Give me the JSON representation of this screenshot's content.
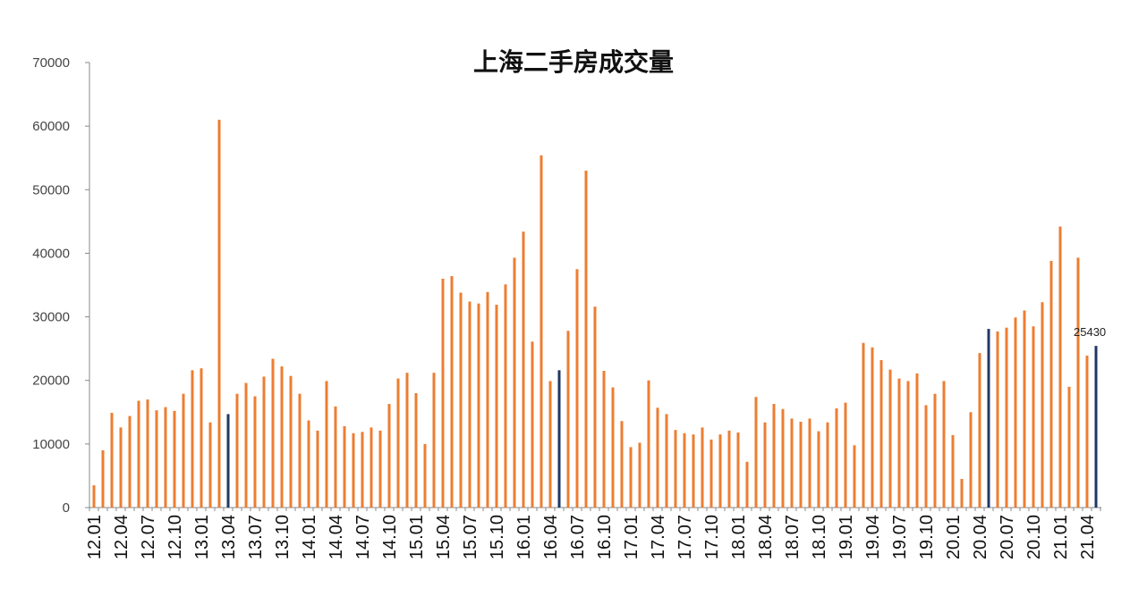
{
  "chart_data": {
    "type": "bar",
    "title": "上海二手房成交量",
    "xlabel": "",
    "ylabel": "",
    "ylim": [
      0,
      70000
    ],
    "yticks": [
      0,
      10000,
      20000,
      30000,
      40000,
      50000,
      60000,
      70000
    ],
    "colors": {
      "default": "#ED7D31",
      "highlight": "#203864"
    },
    "categories": [
      "12.01",
      "12.02",
      "12.03",
      "12.04",
      "12.05",
      "12.06",
      "12.07",
      "12.08",
      "12.09",
      "12.10",
      "12.11",
      "12.12",
      "13.01",
      "13.02",
      "13.03",
      "13.04",
      "13.05",
      "13.06",
      "13.07",
      "13.08",
      "13.09",
      "13.10",
      "13.11",
      "13.12",
      "14.01",
      "14.02",
      "14.03",
      "14.04",
      "14.05",
      "14.06",
      "14.07",
      "14.08",
      "14.09",
      "14.10",
      "14.11",
      "14.12",
      "15.01",
      "15.02",
      "15.03",
      "15.04",
      "15.05",
      "15.06",
      "15.07",
      "15.08",
      "15.09",
      "15.10",
      "15.11",
      "15.12",
      "16.01",
      "16.02",
      "16.03",
      "16.04",
      "16.05",
      "16.06",
      "16.07",
      "16.08",
      "16.09",
      "16.10",
      "16.11",
      "16.12",
      "17.01",
      "17.02",
      "17.03",
      "17.04",
      "17.05",
      "17.06",
      "17.07",
      "17.08",
      "17.09",
      "17.10",
      "17.11",
      "17.12",
      "18.01",
      "18.02",
      "18.03",
      "18.04",
      "18.05",
      "18.06",
      "18.07",
      "18.08",
      "18.09",
      "18.10",
      "18.11",
      "18.12",
      "19.01",
      "19.02",
      "19.03",
      "19.04",
      "19.05",
      "19.06",
      "19.07",
      "19.08",
      "19.09",
      "19.10",
      "19.11",
      "19.12",
      "20.01",
      "20.02",
      "20.03",
      "20.04",
      "20.05",
      "20.06",
      "20.07",
      "20.08",
      "20.09",
      "20.10",
      "20.11",
      "20.12",
      "21.01",
      "21.02",
      "21.03",
      "21.04",
      "21.05"
    ],
    "x_tick_labels": [
      "12.01",
      "12.04",
      "12.07",
      "12.10",
      "13.01",
      "13.04",
      "13.07",
      "13.10",
      "14.01",
      "14.04",
      "14.07",
      "14.10",
      "15.01",
      "15.04",
      "15.07",
      "15.10",
      "16.01",
      "16.04",
      "16.07",
      "16.10",
      "17.01",
      "17.04",
      "17.07",
      "17.10",
      "18.01",
      "18.04",
      "18.07",
      "18.10",
      "19.01",
      "19.04",
      "19.07",
      "19.10",
      "20.01",
      "20.04",
      "20.07",
      "20.10",
      "21.01",
      "21.04"
    ],
    "values": [
      3500,
      9000,
      14900,
      12600,
      14400,
      16800,
      17000,
      15300,
      15800,
      15200,
      17900,
      21600,
      21900,
      13400,
      61000,
      14700,
      17900,
      19600,
      17500,
      20600,
      23400,
      22200,
      20700,
      17900,
      13700,
      12100,
      19900,
      15900,
      12800,
      11700,
      11900,
      12600,
      12100,
      16300,
      20300,
      21200,
      18000,
      10000,
      21200,
      36000,
      36400,
      33800,
      32400,
      32100,
      33900,
      31900,
      35100,
      39300,
      43400,
      26100,
      55400,
      19900,
      21600,
      27800,
      37500,
      53000,
      31600,
      21500,
      18900,
      13600,
      9500,
      10200,
      20000,
      15700,
      14700,
      12200,
      11700,
      11500,
      12600,
      10700,
      11500,
      12100,
      11800,
      7200,
      17400,
      13400,
      16300,
      15500,
      14000,
      13500,
      14000,
      12000,
      13400,
      15600,
      16500,
      9800,
      25900,
      25200,
      23200,
      21700,
      20300,
      19900,
      21100,
      16100,
      17900,
      19900,
      11400,
      4500,
      15000,
      24300,
      28100,
      27700,
      28300,
      29900,
      31000,
      28500,
      32300,
      38800,
      44200,
      19000,
      39300,
      23900,
      25430
    ],
    "highlight_indices": [
      15,
      52,
      100,
      112
    ],
    "annotations": [
      {
        "index": 112,
        "text": "25430"
      }
    ],
    "grid": false,
    "legend": "none"
  }
}
